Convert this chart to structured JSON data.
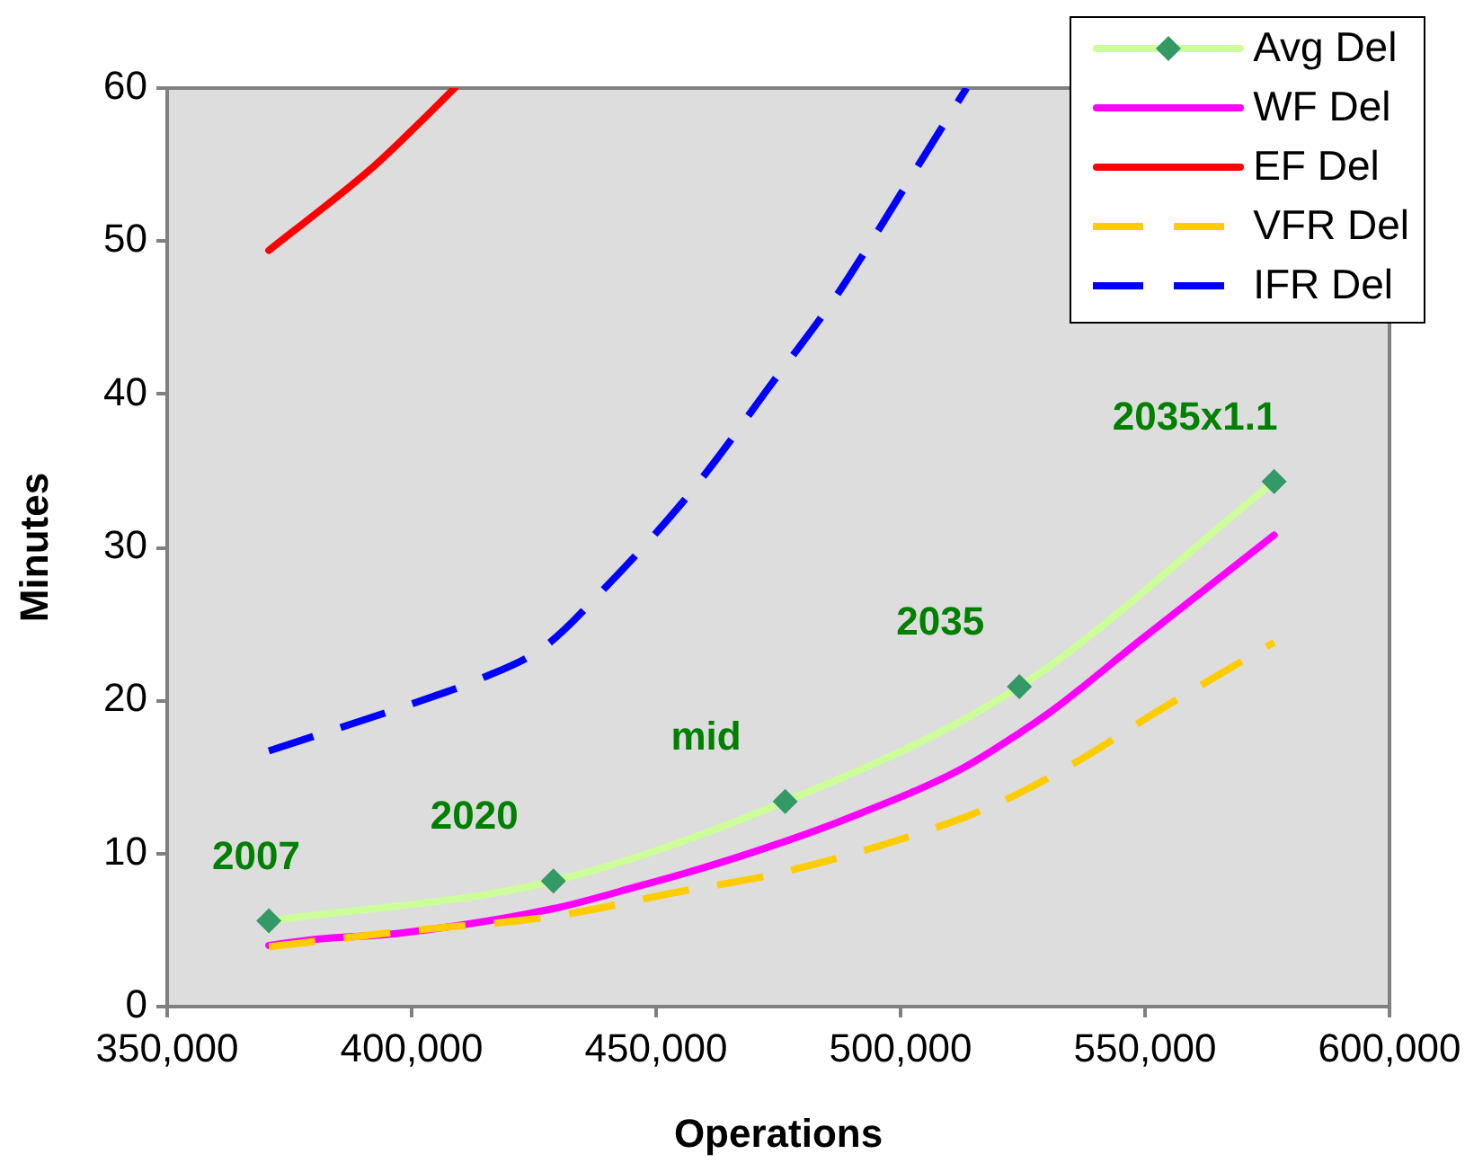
{
  "chart_data": {
    "type": "line",
    "xlabel": "Operations",
    "ylabel": "Minutes",
    "xlim": [
      350000,
      600000
    ],
    "xticks": [
      {
        "value": 350000,
        "label": "350,000"
      },
      {
        "value": 400000,
        "label": "400,000"
      },
      {
        "value": 450000,
        "label": "450,000"
      },
      {
        "value": 500000,
        "label": "500,000"
      },
      {
        "value": 550000,
        "label": "550,000"
      },
      {
        "value": 600000,
        "label": "600,000"
      }
    ],
    "ylim": [
      0,
      60
    ],
    "yticks": [
      0,
      10,
      20,
      30,
      40,
      50,
      60
    ],
    "legend": "top right",
    "series": [
      {
        "name": "Avg Del",
        "color": "#ccff99",
        "colors": [
          "#339966",
          "#339966",
          "#339966",
          "#339966",
          "#339966"
        ],
        "marker": "diamond",
        "x": [
          370800,
          429000,
          476400,
          524300,
          576400
        ],
        "values": [
          5.6,
          8.2,
          13.4,
          20.9,
          34.3
        ]
      },
      {
        "name": "WF Del",
        "color": "#ff00ff",
        "x": [
          370800,
          380600,
          397700,
          429000,
          446800,
          459000,
          473700,
          488400,
          512300,
          524000,
          531300,
          549700,
          576400
        ],
        "values": [
          4.0,
          4.4,
          4.8,
          6.4,
          7.9,
          9.0,
          10.5,
          12.2,
          15.5,
          17.8,
          19.4,
          24.1,
          30.8
        ]
      },
      {
        "name": "EF Del",
        "color": "#ff0000",
        "x": [
          370800,
          391600,
          399600,
          408800
        ],
        "values": [
          49.4,
          54.7,
          57.1,
          60.0
        ]
      },
      {
        "name": "VFR Del",
        "color": "#ffcc00",
        "line_style": "dashed",
        "x": [
          370800,
          397700,
          429000,
          454700,
          476200,
          511700,
          524000,
          538700,
          552100,
          576400
        ],
        "values": [
          3.9,
          4.9,
          5.9,
          7.5,
          8.8,
          12.2,
          13.9,
          16.5,
          19.2,
          23.8
        ]
      },
      {
        "name": "IFR Del",
        "color": "#0000ff",
        "line_style": "dashed",
        "x": [
          370800,
          407500,
          412400,
          427100,
          440000,
          455300,
          462700,
          472500,
          486600,
          492100,
          504300,
          513500
        ],
        "values": [
          16.7,
          20.6,
          21.2,
          23.5,
          27.5,
          32.9,
          35.9,
          40.2,
          46.3,
          49.0,
          55.3,
          60.0
        ]
      }
    ],
    "annotations": [
      {
        "text": "2007",
        "x": 370800,
        "y": 5.6
      },
      {
        "text": "2020",
        "x": 429000,
        "y": 8.2
      },
      {
        "text": "mid",
        "x": 476400,
        "y": 13.4
      },
      {
        "text": "2035",
        "x": 524300,
        "y": 20.9
      },
      {
        "text": "2035x1.1",
        "x": 576400,
        "y": 34.3
      }
    ]
  }
}
